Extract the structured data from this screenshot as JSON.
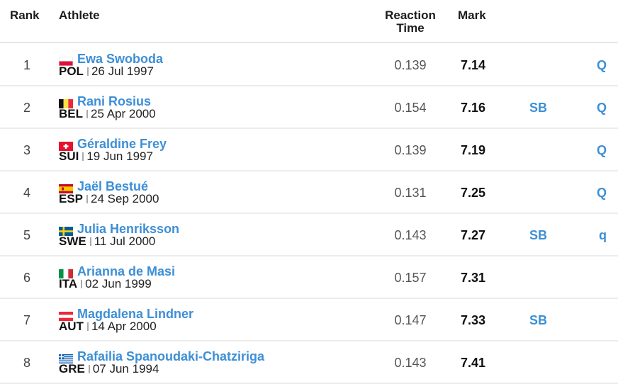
{
  "headers": {
    "rank": "Rank",
    "athlete": "Athlete",
    "reaction_line1": "Reaction",
    "reaction_line2": "Time",
    "mark": "Mark"
  },
  "rows": [
    {
      "rank": "1",
      "name": "Ewa Swoboda",
      "country": "POL",
      "dob": "26 Jul 1997",
      "reaction": "0.139",
      "mark": "7.14",
      "record": "",
      "qual": "Q",
      "flag": "poland-flag-icon"
    },
    {
      "rank": "2",
      "name": "Rani Rosius",
      "country": "BEL",
      "dob": "25 Apr 2000",
      "reaction": "0.154",
      "mark": "7.16",
      "record": "SB",
      "qual": "Q",
      "flag": "belgium-flag-icon"
    },
    {
      "rank": "3",
      "name": "Géraldine Frey",
      "country": "SUI",
      "dob": "19 Jun 1997",
      "reaction": "0.139",
      "mark": "7.19",
      "record": "",
      "qual": "Q",
      "flag": "switzerland-flag-icon"
    },
    {
      "rank": "4",
      "name": "Jaël Bestué",
      "country": "ESP",
      "dob": "24 Sep 2000",
      "reaction": "0.131",
      "mark": "7.25",
      "record": "",
      "qual": "Q",
      "flag": "spain-flag-icon"
    },
    {
      "rank": "5",
      "name": "Julia Henriksson",
      "country": "SWE",
      "dob": "11 Jul 2000",
      "reaction": "0.143",
      "mark": "7.27",
      "record": "SB",
      "qual": "q",
      "flag": "sweden-flag-icon"
    },
    {
      "rank": "6",
      "name": "Arianna de Masi",
      "country": "ITA",
      "dob": "02 Jun 1999",
      "reaction": "0.157",
      "mark": "7.31",
      "record": "",
      "qual": "",
      "flag": "italy-flag-icon"
    },
    {
      "rank": "7",
      "name": "Magdalena Lindner",
      "country": "AUT",
      "dob": "14 Apr 2000",
      "reaction": "0.147",
      "mark": "7.33",
      "record": "SB",
      "qual": "",
      "flag": "austria-flag-icon"
    },
    {
      "rank": "8",
      "name": "Rafailia Spanoudaki-Chatziriga",
      "country": "GRE",
      "dob": "07 Jun 1994",
      "reaction": "0.143",
      "mark": "7.41",
      "record": "",
      "qual": "",
      "flag": "greece-flag-icon"
    }
  ],
  "colors": {
    "link": "#3d8fd6",
    "divider": "#ececec"
  }
}
